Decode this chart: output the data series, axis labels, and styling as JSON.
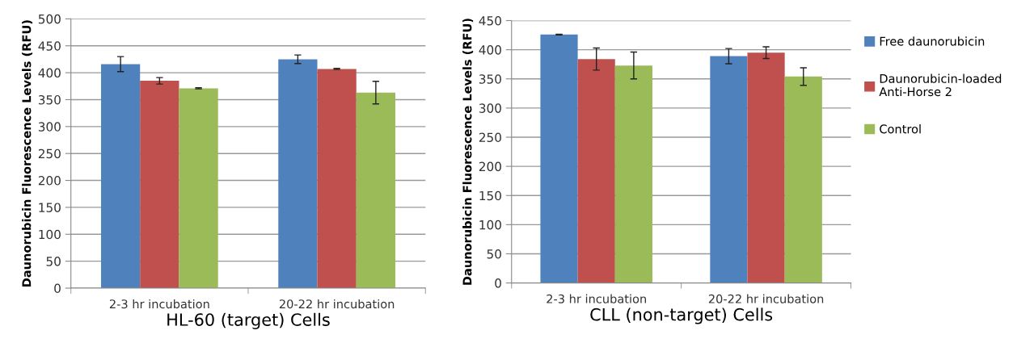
{
  "chart_data": [
    {
      "type": "bar",
      "xlabel": "HL-60 (target) Cells",
      "ylabel": "Daunorubicin Fluorescence Levels (RFU)",
      "categories": [
        "2-3 hr incubation",
        "20-22 hr incubation"
      ],
      "series": [
        {
          "color": "#4f81bd",
          "values": [
            416,
            425
          ],
          "errors": [
            14,
            8
          ]
        },
        {
          "color": "#c0504d",
          "values": [
            385,
            407
          ],
          "errors": [
            6,
            1
          ]
        },
        {
          "color": "#9bbb59",
          "values": [
            371,
            363
          ],
          "errors": [
            1,
            21
          ]
        }
      ],
      "ylim": [
        0,
        500
      ],
      "yticks": [
        0,
        50,
        100,
        150,
        200,
        250,
        300,
        350,
        400,
        450,
        500
      ],
      "grid": "y",
      "legend": false
    },
    {
      "type": "bar",
      "xlabel": "CLL (non-target) Cells",
      "ylabel": "Daunorubicin Fluorescence Levels (RFU)",
      "categories": [
        "2-3 hr incubation",
        "20-22 hr incubation"
      ],
      "series": [
        {
          "name": "Free daunorubicin",
          "color": "#4f81bd",
          "values": [
            426,
            389
          ],
          "errors": [
            0.5,
            13
          ]
        },
        {
          "name": "Daunorubicin-loaded Anti-Horse 2",
          "color": "#c0504d",
          "values": [
            384,
            395
          ],
          "errors": [
            19,
            10
          ]
        },
        {
          "name": "Control",
          "color": "#9bbb59",
          "values": [
            373,
            354
          ],
          "errors": [
            23,
            15
          ]
        }
      ],
      "ylim": [
        0,
        450
      ],
      "yticks": [
        0,
        50,
        100,
        150,
        200,
        250,
        300,
        350,
        400,
        450
      ],
      "grid": "y",
      "legend": "right"
    }
  ]
}
